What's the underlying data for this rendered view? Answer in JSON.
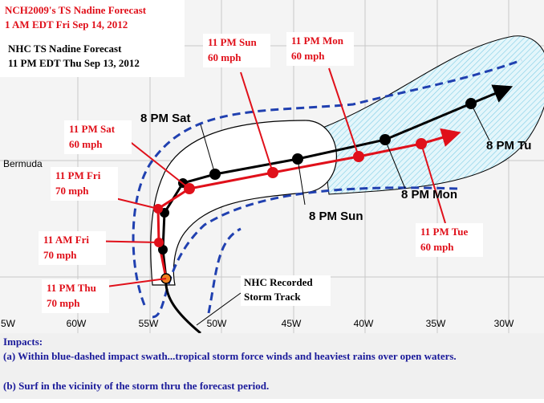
{
  "header": {
    "title": "NCH2009's TS Nadine Forecast",
    "issued": "1 AM EDT Fri Sep 14, 2012",
    "nhc_title": "NHC TS Nadine Forecast",
    "nhc_issued": "11 PM EDT Thu Sep 13, 2012"
  },
  "forecast_labels": [
    {
      "time": "11 PM Thu",
      "intensity": "70 mph"
    },
    {
      "time": "11 AM Fri",
      "intensity": "70 mph"
    },
    {
      "time": "11 PM Fri",
      "intensity": "70 mph"
    },
    {
      "time": "11 PM Sat",
      "intensity": "60 mph"
    },
    {
      "time": "11 PM Sun",
      "intensity": "60 mph"
    },
    {
      "time": "11 PM Mon",
      "intensity": "60 mph"
    },
    {
      "time": "11 PM Tue",
      "intensity": "60 mph"
    }
  ],
  "nhc_labels": [
    "8 PM Sat",
    "8 PM Sun",
    "8 PM Mon",
    "8 PM Tu"
  ],
  "places": [
    "Bermuda"
  ],
  "track_note": [
    "NHC Recorded",
    "Storm Track"
  ],
  "longitudes": [
    "5W",
    "60W",
    "55W",
    "50W",
    "45W",
    "40W",
    "35W",
    "30W"
  ],
  "impacts": {
    "heading": "Impacts:",
    "lines": [
      "(a) Within blue-dashed impact swath...tropical storm force winds and heaviest rains over open waters.",
      "(b) Surf in the vicinity of the storm thru the forecast period."
    ]
  }
}
